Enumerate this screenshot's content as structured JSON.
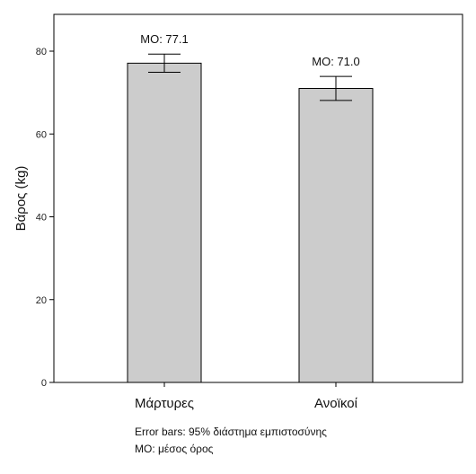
{
  "chart_data": {
    "type": "bar",
    "categories": [
      "Μάρτυρες",
      "Ανοϊκοί"
    ],
    "values": [
      77.1,
      71.0
    ],
    "error_bars": [
      {
        "lower": 74.9,
        "upper": 79.3
      },
      {
        "lower": 68.1,
        "upper": 73.9
      }
    ],
    "data_labels": [
      "ΜΟ: 77.1",
      "ΜΟ: 71.0"
    ],
    "title": "",
    "xlabel": "",
    "ylabel": "Βάρος (kg)",
    "ylim": [
      0,
      88
    ],
    "yticks": [
      0,
      20,
      40,
      60,
      80
    ],
    "grid": false,
    "bar_color": "#cccccc",
    "edge_color": "#000000"
  },
  "footnotes": {
    "line1": "Error bars: 95% διάστημα εμπιστοσύνης",
    "line2": "ΜΟ: μέσος όρος"
  }
}
